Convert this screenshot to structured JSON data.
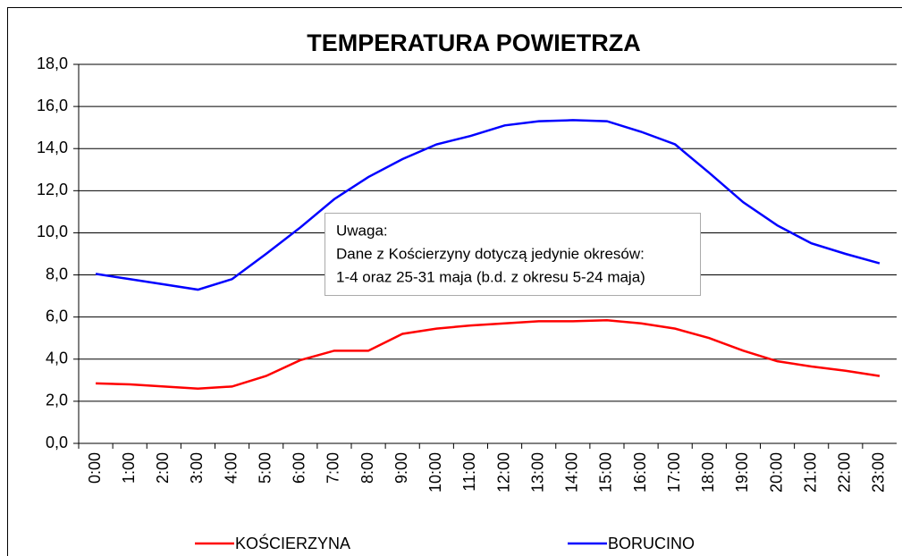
{
  "chart_data": {
    "type": "line",
    "title": "TEMPERATURA POWIETRZA",
    "categories": [
      "0:00",
      "1:00",
      "2:00",
      "3:00",
      "4:00",
      "5:00",
      "6:00",
      "7:00",
      "8:00",
      "9:00",
      "10:00",
      "11:00",
      "12:00",
      "13:00",
      "14:00",
      "15:00",
      "16:00",
      "17:00",
      "18:00",
      "19:00",
      "20:00",
      "21:00",
      "22:00",
      "23:00"
    ],
    "series": [
      {
        "name": "KOŚCIERZYNA",
        "color": "#ff0000",
        "values": [
          2.85,
          2.8,
          2.7,
          2.6,
          2.7,
          3.2,
          3.95,
          4.4,
          4.4,
          5.2,
          5.45,
          5.6,
          5.7,
          5.8,
          5.8,
          5.85,
          5.7,
          5.45,
          5.0,
          4.4,
          3.9,
          3.65,
          3.45,
          3.2
        ]
      },
      {
        "name": "BORUCINO",
        "color": "#0000ff",
        "values": [
          8.05,
          7.8,
          7.55,
          7.3,
          7.8,
          9.0,
          10.25,
          11.6,
          12.65,
          13.5,
          14.2,
          14.6,
          15.1,
          15.3,
          15.35,
          15.3,
          14.8,
          14.2,
          12.85,
          11.45,
          10.35,
          9.5,
          9.0,
          8.55
        ]
      }
    ],
    "ylim": [
      0,
      18
    ],
    "yticks": [
      {
        "value": 0,
        "label": "0,0"
      },
      {
        "value": 2,
        "label": "2,0"
      },
      {
        "value": 4,
        "label": "4,0"
      },
      {
        "value": 6,
        "label": "6,0"
      },
      {
        "value": 8,
        "label": "8,0"
      },
      {
        "value": 10,
        "label": "10,0"
      },
      {
        "value": 12,
        "label": "12,0"
      },
      {
        "value": 14,
        "label": "14,0"
      },
      {
        "value": 16,
        "label": "16,0"
      },
      {
        "value": 18,
        "label": "18,0"
      }
    ],
    "grid": true,
    "annotation": [
      "Uwaga:",
      "Dane z Kościerzyny dotyczą jedynie okresów:",
      "1-4 oraz 25-31 maja (b.d. z okresu 5-24 maja)"
    ]
  }
}
